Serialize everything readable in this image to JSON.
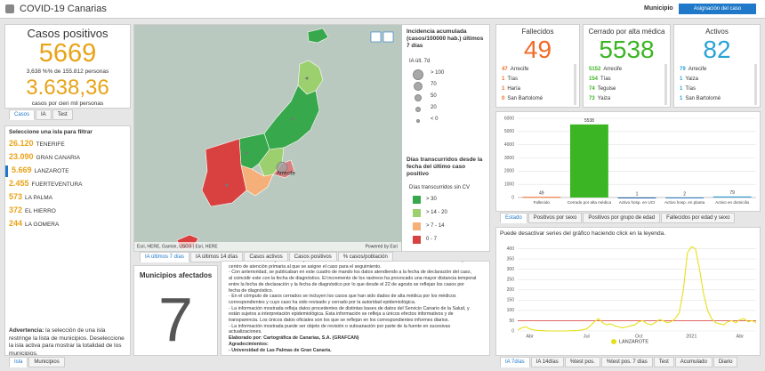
{
  "header": {
    "title": "COVID-19 Canarias",
    "filter_label": "Municipio",
    "button": "Asignación del caso"
  },
  "summary": {
    "title": "Casos positivos",
    "total": "5669",
    "percent_line": "3,638 %% de 155.812 personas",
    "rate": "3.638,36",
    "rate_caption": "casos por cien mil personas",
    "tabs": [
      "Casos",
      "IA",
      "Test"
    ]
  },
  "islands": {
    "title": "Seleccione una isla para filtrar",
    "items": [
      {
        "count": "26.120",
        "name": "TENERIFE"
      },
      {
        "count": "23.090",
        "name": "GRAN CANARIA"
      },
      {
        "count": "5.669",
        "name": "LANZAROTE"
      },
      {
        "count": "2.455",
        "name": "FUERTEVENTURA"
      },
      {
        "count": "573",
        "name": "LA PALMA"
      },
      {
        "count": "372",
        "name": "EL HIERRO"
      },
      {
        "count": "244",
        "name": "LA GOMERA"
      }
    ],
    "warning_bold": "Advertencia:",
    "warning": " la selección de una isla restringe la lista de municipios. Deseleccione la isla activa para mostrar la totalidad de los municipios.",
    "tabs": [
      "Isla",
      "Municipios"
    ]
  },
  "map": {
    "place_label": "Arrecife",
    "attribution": "Esri, HERE, Garmin, USGS | Esri, HERE",
    "powered": "Powered by Esri",
    "legend_title1": "Incidencia acumulada (casos/100000 hab.) últimos 7 días",
    "legend_sub1": "IA últ. 7d",
    "circles": [
      "> 100",
      "70",
      "50",
      "20",
      "< 0"
    ],
    "legend_title2": "Días transcurridos desde la fecha del último caso positivo",
    "legend_sub2": "Días transcurridos sin CV",
    "classes": [
      {
        "label": "> 30",
        "color": "#38a84c"
      },
      {
        "label": "> 14 - 20",
        "color": "#9ccf6d"
      },
      {
        "label": "> 7 - 14",
        "color": "#f5b07a"
      },
      {
        "label": "0 - 7",
        "color": "#d94040"
      }
    ],
    "tabs": [
      "IA últimos 7 días",
      "IA últimos 14 días",
      "Casos activos",
      "Casos positivos",
      "% casos/población"
    ]
  },
  "municipios": {
    "title": "Municipios afectados",
    "count": "7"
  },
  "notes": {
    "lines": [
      "- En el cuadro se reflejan los casos positivos confirmados mediante test de laboratorio de acuerdo con el municipio del",
      "centro de atención primaria al que se asigne el caso para el seguimiento.",
      "- Con anterioridad, se publicaban en este cuadro de mando los datos atendiendo a la fecha de declaración del caso,",
      "al coincidir este con la fecha de diagnóstico. El incremento de los rastreos ha provocado una mayor distancia temporal",
      "entre la fecha de declaración y la fecha de diagnóstico por lo que desde el 22 de agosto se reflejan los casos por",
      "fecha de diagnóstico.",
      "- En el cómputo de casos cerrados se incluyen los casos que han sido dados de alta médica por los médicos",
      "correspondientes y cuyo caso ha sido revisado y cerrado por la autoridad epidemiológica.",
      "- La información mostrada refleja datos procedentes de distintas bases de datos del Servicio Canario de la Salud, y",
      "están sujetos a interpretación epidemiológica. Esta información se refleja a únicos efectos informativos y de",
      "transparencia. Los únicos datos oficiales son los que se reflejan en los correspondientes informes diarios.",
      "- La información mostrada puede ser objeto de revisión o subsanación por parte de la fuente en sucesivas",
      "actualizaciones.",
      "Elaborado por: Cartográfica de Canarias, S.A. (GRAFCAN)",
      "Agradecimientos:",
      "- Universidad de Las Palmas de Gran Canaria."
    ]
  },
  "cards": [
    {
      "title": "Fallecidos",
      "total": "49",
      "color": "#f06a25",
      "items": [
        {
          "count": "47",
          "name": "Arrecife"
        },
        {
          "count": "1",
          "name": "Tías"
        },
        {
          "count": "1",
          "name": "Haría"
        },
        {
          "count": "0",
          "name": "San Bartolomé"
        }
      ]
    },
    {
      "title": "Cerrado por alta médica",
      "total": "5538",
      "color": "#3cb524",
      "items": [
        {
          "count": "5152",
          "name": "Arrecife"
        },
        {
          "count": "154",
          "name": "Tías"
        },
        {
          "count": "74",
          "name": "Teguise"
        },
        {
          "count": "73",
          "name": "Yaiza"
        }
      ]
    },
    {
      "title": "Activos",
      "total": "82",
      "color": "#29a3d6",
      "items": [
        {
          "count": "79",
          "name": "Arrecife"
        },
        {
          "count": "1",
          "name": "Yaiza"
        },
        {
          "count": "1",
          "name": "Tías"
        },
        {
          "count": "1",
          "name": "San Bartolomé"
        }
      ]
    }
  ],
  "bar_tabs": [
    "Estado",
    "Positivos por sexo",
    "Positivos por grupo de edad",
    "Fallecidos por edad y sexo"
  ],
  "line_note": "Puede desactivar series del gráfico haciendo click en la leyenda.",
  "line_tabs": [
    "IA 7días",
    "IA 14días",
    "%test pos.",
    "%test pos. 7 días",
    "Test",
    "Acumulado",
    "Diario"
  ],
  "chart_data": [
    {
      "type": "bar",
      "categories": [
        "Fallecido",
        "Cerrado por alta médica",
        "Activo hosp. en UCI",
        "Activo hosp. en planta",
        "Activo en domicilio"
      ],
      "values": [
        49,
        5538,
        1,
        2,
        79
      ],
      "colors": [
        "#f06a25",
        "#3cb524",
        "#1c5fa8",
        "#2f7fc4",
        "#3399cc"
      ],
      "ylim": [
        0,
        6000
      ],
      "yticks": [
        0,
        1000,
        2000,
        3000,
        4000,
        5000,
        6000
      ],
      "grid": true
    },
    {
      "type": "line",
      "categories": [
        null,
        null,
        null,
        "Abr",
        null,
        null,
        null,
        null,
        null,
        null,
        null,
        null,
        null,
        null,
        null,
        null,
        null,
        "Jul",
        null,
        null,
        null,
        null,
        null,
        null,
        null,
        null,
        null,
        null,
        null,
        null,
        "Oct",
        null,
        null,
        null,
        null,
        null,
        null,
        null,
        null,
        null,
        null,
        null,
        null,
        "2021",
        null,
        null,
        null,
        null,
        null,
        null,
        null,
        null,
        null,
        null,
        null,
        "Abr",
        null,
        null,
        null,
        null
      ],
      "series": [
        {
          "name": "LANZAROTE",
          "color": "#e6e01c",
          "values": [
            5,
            15,
            20,
            10,
            5,
            3,
            2,
            1,
            0,
            0,
            0,
            0,
            0,
            1,
            2,
            3,
            5,
            10,
            25,
            45,
            60,
            40,
            30,
            35,
            25,
            20,
            15,
            20,
            25,
            30,
            45,
            50,
            35,
            30,
            40,
            55,
            50,
            40,
            45,
            60,
            90,
            200,
            380,
            410,
            400,
            300,
            180,
            100,
            60,
            40,
            35,
            30,
            45,
            50,
            40,
            55,
            60,
            45,
            50,
            40
          ]
        }
      ],
      "reference_line": {
        "value": 50,
        "color": "#e05050"
      },
      "ylim": [
        0,
        450
      ],
      "yticks": [
        0,
        50,
        100,
        150,
        200,
        250,
        300,
        350,
        400
      ],
      "grid": true
    }
  ]
}
